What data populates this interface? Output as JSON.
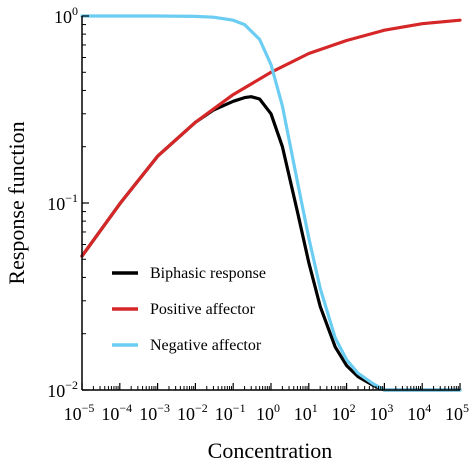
{
  "chart_data": {
    "type": "line",
    "xlabel": "Concentration",
    "ylabel": "Response function",
    "xscale": "log",
    "yscale": "log",
    "xlim": [
      1e-05,
      100000
    ],
    "ylim": [
      0.01,
      1
    ],
    "x_tick_labels": [
      {
        "base": "10",
        "exp": "−5"
      },
      {
        "base": "10",
        "exp": "−4"
      },
      {
        "base": "10",
        "exp": "−3"
      },
      {
        "base": "10",
        "exp": "−2"
      },
      {
        "base": "10",
        "exp": "−1"
      },
      {
        "base": "10",
        "exp": "0"
      },
      {
        "base": "10",
        "exp": "1"
      },
      {
        "base": "10",
        "exp": "2"
      },
      {
        "base": "10",
        "exp": "3"
      },
      {
        "base": "10",
        "exp": "4"
      },
      {
        "base": "10",
        "exp": "5"
      }
    ],
    "y_tick_labels": [
      {
        "base": "10",
        "exp": "−2"
      },
      {
        "base": "10",
        "exp": "−1"
      },
      {
        "base": "10",
        "exp": "0"
      }
    ],
    "legend_position": "lower-left",
    "grid": false,
    "series": [
      {
        "name": "Biphasic response",
        "color": "#000000",
        "x": [
          1e-05,
          0.0001,
          0.001,
          0.01,
          0.03,
          0.1,
          0.2,
          0.3,
          0.5,
          1,
          2,
          5,
          10,
          20,
          50,
          100,
          200,
          500,
          1000,
          2000,
          5000,
          10000,
          100000
        ],
        "y": [
          0.052,
          0.099,
          0.178,
          0.27,
          0.314,
          0.35,
          0.366,
          0.37,
          0.36,
          0.3,
          0.2,
          0.09,
          0.048,
          0.028,
          0.017,
          0.0135,
          0.0118,
          0.0106,
          0.01,
          0.01,
          0.01,
          0.01,
          0.01
        ]
      },
      {
        "name": "Positive affector",
        "color": "#d62728",
        "x": [
          1e-05,
          0.0001,
          0.001,
          0.01,
          0.1,
          1,
          10,
          100,
          1000,
          10000,
          100000
        ],
        "y": [
          0.052,
          0.099,
          0.178,
          0.27,
          0.38,
          0.5,
          0.63,
          0.74,
          0.84,
          0.91,
          0.95
        ]
      },
      {
        "name": "Negative affector",
        "color": "#6ccdf2",
        "x": [
          1e-05,
          0.001,
          0.01,
          0.03,
          0.1,
          0.2,
          0.5,
          1,
          2,
          5,
          10,
          20,
          50,
          100,
          200,
          500,
          1000,
          2000,
          5000,
          10000,
          100000
        ],
        "y": [
          1.0,
          1.0,
          0.995,
          0.985,
          0.95,
          0.9,
          0.75,
          0.55,
          0.33,
          0.13,
          0.065,
          0.035,
          0.019,
          0.0145,
          0.0123,
          0.0108,
          0.01,
          0.01,
          0.01,
          0.01,
          0.01
        ]
      }
    ]
  }
}
